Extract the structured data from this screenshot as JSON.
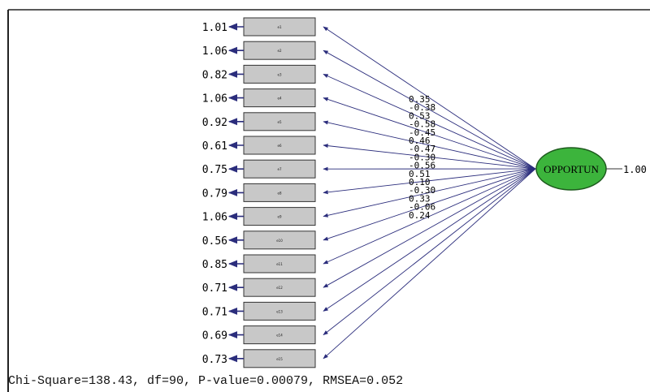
{
  "latent": {
    "label": "OPPORTUN",
    "variance": "1.00",
    "fill": "#3cb43c"
  },
  "indicators": [
    {
      "name": "e1",
      "error": "1.01",
      "loading": "0.35"
    },
    {
      "name": "e2",
      "error": "1.06",
      "loading": "-0.38"
    },
    {
      "name": "e3",
      "error": "0.82",
      "loading": "0.53"
    },
    {
      "name": "e4",
      "error": "1.06",
      "loading": "-0.58"
    },
    {
      "name": "e5",
      "error": "0.92",
      "loading": "-0.45"
    },
    {
      "name": "e6",
      "error": "0.61",
      "loading": "0.46"
    },
    {
      "name": "e7",
      "error": "0.75",
      "loading": "-0.47"
    },
    {
      "name": "e8",
      "error": "0.79",
      "loading": "-0.30"
    },
    {
      "name": "e9",
      "error": "1.06",
      "loading": "-0.56"
    },
    {
      "name": "e10",
      "error": "0.56",
      "loading": "0.51"
    },
    {
      "name": "e11",
      "error": "0.85",
      "loading": "0.10"
    },
    {
      "name": "e12",
      "error": "0.71",
      "loading": "-0.30"
    },
    {
      "name": "e13",
      "error": "0.71",
      "loading": "0.33"
    },
    {
      "name": "e14",
      "error": "0.69",
      "loading": "-0.06"
    },
    {
      "name": "e15",
      "error": "0.73",
      "loading": "0.24"
    }
  ],
  "fit_stats": "Chi-Square=138.43, df=90, P-value=0.00079, RMSEA=0.052",
  "colors": {
    "path": "#2b2d7c",
    "box": "#c8c8c8",
    "box_border": "#333333",
    "frame": "#222222"
  }
}
